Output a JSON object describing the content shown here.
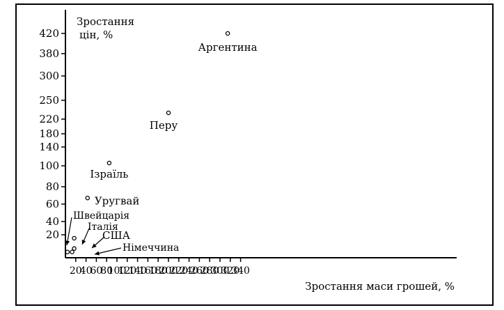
{
  "chart_data": {
    "type": "scatter",
    "title": "",
    "ylabel_lines": [
      "Зростання",
      "цін, %"
    ],
    "xlabel": "Зростання маси грошей, %",
    "x_ticks": [
      20,
      40,
      60,
      80,
      100,
      120,
      140,
      160,
      180,
      200,
      220,
      240,
      260,
      280,
      300,
      320,
      340
    ],
    "y_ticks": [
      20,
      40,
      60,
      80,
      100,
      140,
      180,
      220,
      250,
      300,
      380,
      420
    ],
    "xlim": [
      0,
      355
    ],
    "points": [
      {
        "label": "Аргентина",
        "x": 315,
        "y": 420
      },
      {
        "label": "Перу",
        "x": 200,
        "y": 230
      },
      {
        "label": "Ізраїль",
        "x": 85,
        "y": 106
      },
      {
        "label": "Уругвай",
        "x": 43,
        "y": 67
      },
      {
        "label": "Швейцарія",
        "x": 4,
        "y": 5
      },
      {
        "label": "Італія",
        "x": 17,
        "y": 17
      },
      {
        "label": "США",
        "x": 17,
        "y": 8
      },
      {
        "label": "Німеччина",
        "x": 13,
        "y": 5
      }
    ]
  }
}
